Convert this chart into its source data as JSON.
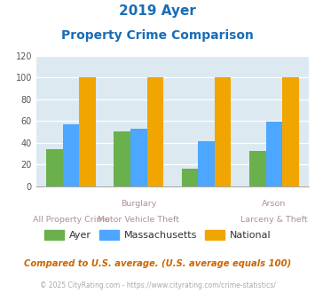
{
  "title_line1": "2019 Ayer",
  "title_line2": "Property Crime Comparison",
  "ayer_values": [
    34,
    50,
    16,
    32
  ],
  "mass_values": [
    57,
    53,
    41,
    59
  ],
  "national_values": [
    100,
    100,
    100,
    100
  ],
  "ayer_color": "#6ab04c",
  "mass_color": "#4da6ff",
  "national_color": "#f0a500",
  "bg_color": "#dce9f0",
  "title_color": "#1a6db5",
  "ylim": [
    0,
    120
  ],
  "yticks": [
    0,
    20,
    40,
    60,
    80,
    100,
    120
  ],
  "legend_labels": [
    "Ayer",
    "Massachusetts",
    "National"
  ],
  "top_xlabels": [
    [
      "",
      1
    ],
    [
      "Burglary",
      1
    ],
    [
      "",
      2
    ],
    [
      "Arson",
      3
    ]
  ],
  "bottom_xlabels": [
    "All Property Crime",
    "Motor Vehicle Theft",
    "",
    "Larceny & Theft"
  ],
  "footnote1": "Compared to U.S. average. (U.S. average equals 100)",
  "footnote2": "© 2025 CityRating.com - https://www.cityrating.com/crime-statistics/",
  "footnote1_color": "#cc6600",
  "footnote2_color": "#aaaaaa",
  "label_color": "#b09090"
}
